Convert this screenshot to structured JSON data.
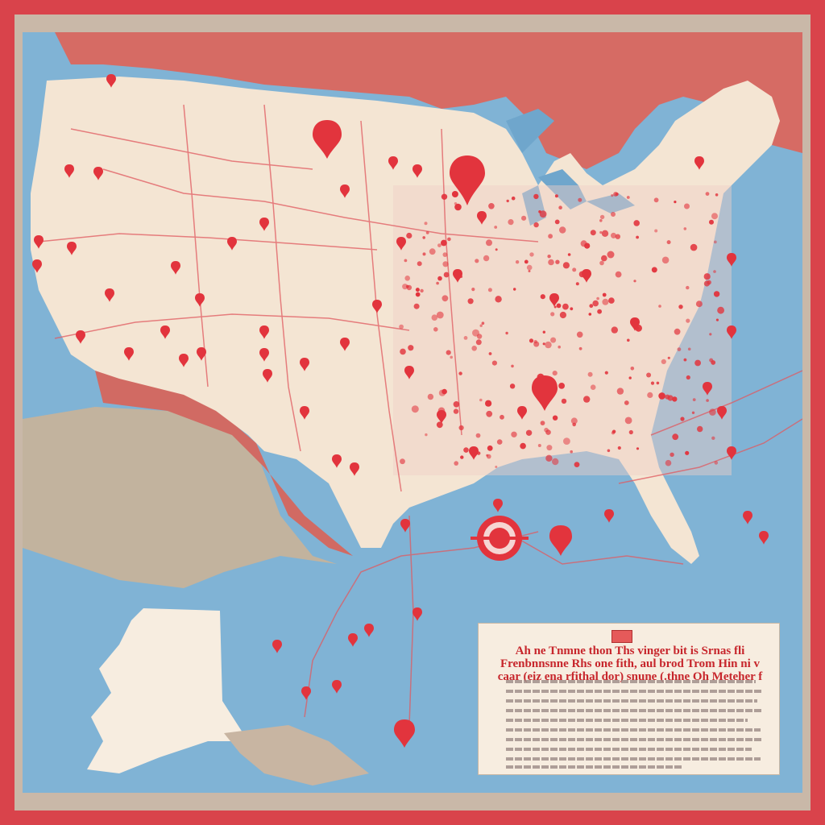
{
  "colors": {
    "frame": "#d9434b",
    "ocean": "#7db1d4",
    "land": "#f3e4d3",
    "neighbor_land": "#d1675f",
    "mexico": "#c2b39f",
    "pin": "#e2343d",
    "route": "#e05a60"
  },
  "map": {
    "labels": [],
    "pins": [
      {
        "id": "wa1"
      },
      {
        "id": "wa2"
      },
      {
        "id": "or1"
      },
      {
        "id": "or2"
      },
      {
        "id": "ca1"
      },
      {
        "id": "ca2"
      },
      {
        "id": "ca3"
      },
      {
        "id": "nv1"
      },
      {
        "id": "az1"
      },
      {
        "id": "az2"
      },
      {
        "id": "ut1"
      },
      {
        "id": "co1"
      },
      {
        "id": "nm1"
      },
      {
        "id": "tx1"
      },
      {
        "id": "tx2"
      },
      {
        "id": "tx3"
      },
      {
        "id": "mn1"
      },
      {
        "id": "mi1"
      },
      {
        "id": "ne1"
      },
      {
        "id": "ks1"
      },
      {
        "id": "ok1"
      },
      {
        "id": "la1"
      },
      {
        "id": "ga1"
      },
      {
        "id": "fl1"
      },
      {
        "id": "gulf1"
      },
      {
        "id": "gulf2"
      },
      {
        "id": "ocean1"
      },
      {
        "id": "ocean2"
      },
      {
        "id": "ocean3"
      },
      {
        "id": "ne2"
      },
      {
        "id": "nd1"
      },
      {
        "id": "sd1"
      }
    ],
    "icons": [
      "map-pin-icon",
      "target-marker-icon"
    ]
  },
  "legend": {
    "title": "Ah ne Tnmne thon Ths vinger bit is Srnas fli Frenbnnsnne Rhs one fith, aul brod Trom Hin ni v caar (eiz ena rfithal dor) snune (.thne Oh Meteher f",
    "text_lines": 10
  }
}
